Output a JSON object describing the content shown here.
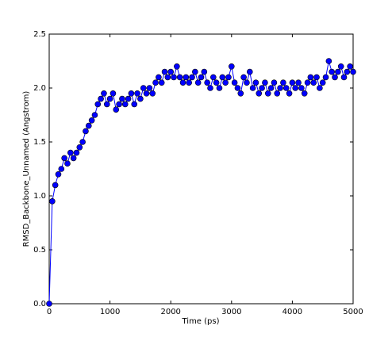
{
  "chart_data": {
    "type": "line",
    "xlabel": "Time (ps)",
    "ylabel": "RMSD_Backbone_Unnamed (Angstrom)",
    "x": [
      0,
      50,
      100,
      150,
      200,
      250,
      300,
      350,
      400,
      450,
      500,
      550,
      600,
      650,
      700,
      750,
      800,
      850,
      900,
      950,
      1000,
      1050,
      1100,
      1150,
      1200,
      1250,
      1300,
      1350,
      1400,
      1450,
      1500,
      1550,
      1600,
      1650,
      1700,
      1750,
      1800,
      1850,
      1900,
      1950,
      2000,
      2050,
      2100,
      2150,
      2200,
      2250,
      2300,
      2350,
      2400,
      2450,
      2500,
      2550,
      2600,
      2650,
      2700,
      2750,
      2800,
      2850,
      2900,
      2950,
      3000,
      3050,
      3100,
      3150,
      3200,
      3250,
      3300,
      3350,
      3400,
      3450,
      3500,
      3550,
      3600,
      3650,
      3700,
      3750,
      3800,
      3850,
      3900,
      3950,
      4000,
      4050,
      4100,
      4150,
      4200,
      4250,
      4300,
      4350,
      4400,
      4450,
      4500,
      4550,
      4600,
      4650,
      4700,
      4750,
      4800,
      4850,
      4900,
      4950,
      5000
    ],
    "series": [
      {
        "color": "#0000ff",
        "values": [
          0,
          0.95,
          1.1,
          1.2,
          1.25,
          1.35,
          1.3,
          1.4,
          1.35,
          1.4,
          1.45,
          1.5,
          1.6,
          1.65,
          1.7,
          1.75,
          1.85,
          1.9,
          1.95,
          1.85,
          1.9,
          1.95,
          1.8,
          1.85,
          1.9,
          1.85,
          1.9,
          1.95,
          1.85,
          1.95,
          1.9,
          2.0,
          1.95,
          2.0,
          1.95,
          2.05,
          2.1,
          2.05,
          2.15,
          2.1,
          2.15,
          2.1,
          2.2,
          2.1,
          2.05,
          2.1,
          2.05,
          2.1,
          2.15,
          2.05,
          2.1,
          2.15,
          2.05,
          2.0,
          2.1,
          2.05,
          2.0,
          2.1,
          2.05,
          2.1,
          2.2,
          2.05,
          2.0,
          1.95,
          2.1,
          2.05,
          2.15,
          2.0,
          2.05,
          1.95,
          2.0,
          2.05,
          1.95,
          2.0,
          2.05,
          1.95,
          2.0,
          2.05,
          2.0,
          1.95,
          2.05,
          2.0,
          2.05,
          2.0,
          1.95,
          2.05,
          2.1,
          2.05,
          2.1,
          2.0,
          2.05,
          2.1,
          2.25,
          2.15,
          2.1,
          2.15,
          2.2,
          2.1,
          2.15,
          2.2,
          2.15
        ]
      }
    ],
    "xlim": [
      0,
      5000
    ],
    "xticks": [
      0,
      1000,
      2000,
      3000,
      4000,
      5000
    ],
    "ylim": [
      0,
      2.5
    ],
    "yticks": [
      {
        "value": 0,
        "label": "0.0"
      },
      0.5,
      {
        "value": 1,
        "label": "1.0"
      },
      1.5,
      {
        "value": 2,
        "label": "2.0"
      },
      2.5
    ],
    "grid": false
  }
}
